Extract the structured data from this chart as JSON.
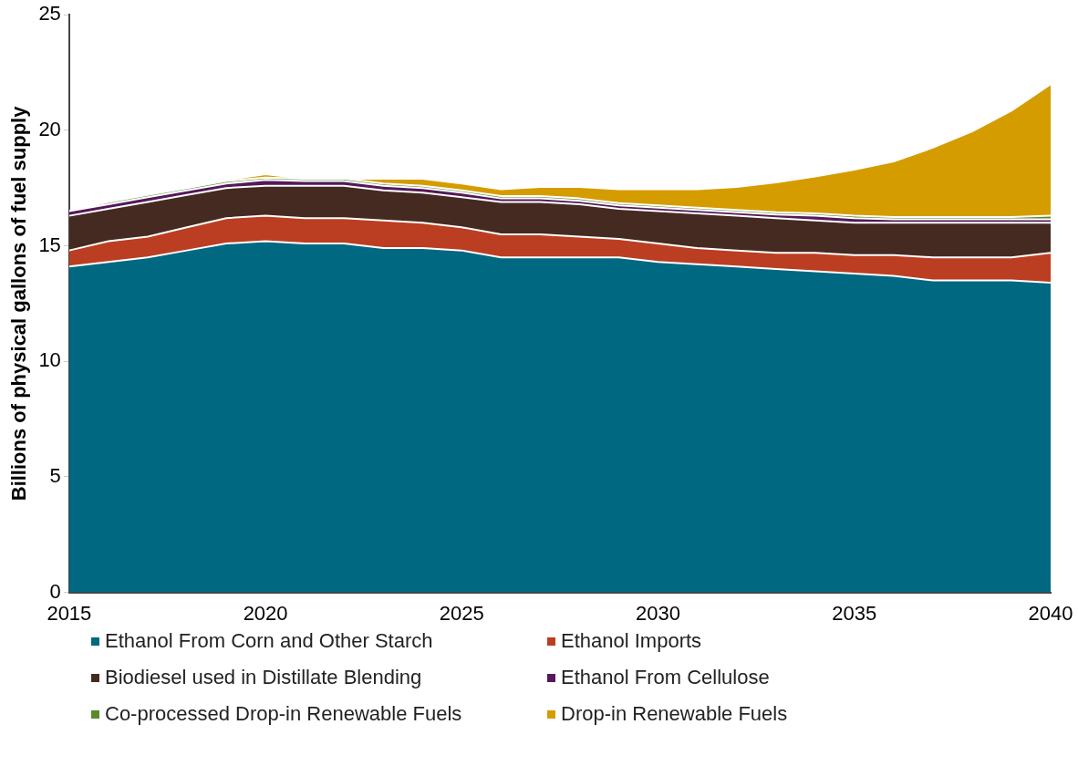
{
  "chart_data": {
    "type": "area",
    "stacked": true,
    "ylabel": "Billions of physical gallons of fuel supply",
    "x": [
      2015,
      2016,
      2017,
      2018,
      2019,
      2020,
      2021,
      2022,
      2023,
      2024,
      2025,
      2026,
      2027,
      2028,
      2029,
      2030,
      2031,
      2032,
      2033,
      2034,
      2035,
      2036,
      2037,
      2038,
      2039,
      2040
    ],
    "xlim": [
      2015,
      2040
    ],
    "xticks": [
      2015,
      2020,
      2025,
      2030,
      2035,
      2040
    ],
    "ylim": [
      0,
      25
    ],
    "yticks": [
      0,
      5,
      10,
      15,
      20,
      25
    ],
    "grid": false,
    "legend": "bottom",
    "series": [
      {
        "name": "Ethanol From Corn and Other Starch",
        "color": "#006880",
        "values": [
          14.1,
          14.3,
          14.5,
          14.8,
          15.1,
          15.2,
          15.1,
          15.1,
          14.9,
          14.9,
          14.8,
          14.5,
          14.5,
          14.5,
          14.5,
          14.3,
          14.2,
          14.1,
          14.0,
          13.9,
          13.8,
          13.7,
          13.5,
          13.5,
          13.5,
          13.4
        ]
      },
      {
        "name": "Ethanol Imports",
        "color": "#bb3e22",
        "values": [
          0.7,
          0.9,
          0.9,
          1.0,
          1.1,
          1.1,
          1.1,
          1.1,
          1.2,
          1.1,
          1.0,
          1.0,
          1.0,
          0.9,
          0.8,
          0.8,
          0.7,
          0.7,
          0.7,
          0.8,
          0.8,
          0.9,
          1.0,
          1.0,
          1.0,
          1.3
        ]
      },
      {
        "name": "Biodiesel used in Distillate Blending",
        "color": "#452a21",
        "values": [
          1.5,
          1.4,
          1.5,
          1.4,
          1.3,
          1.3,
          1.4,
          1.4,
          1.3,
          1.3,
          1.3,
          1.4,
          1.4,
          1.4,
          1.3,
          1.4,
          1.5,
          1.5,
          1.5,
          1.4,
          1.4,
          1.4,
          1.5,
          1.5,
          1.5,
          1.3
        ]
      },
      {
        "name": "Ethanol From Cellulose",
        "color": "#55185a",
        "values": [
          0.2,
          0.2,
          0.2,
          0.2,
          0.2,
          0.25,
          0.2,
          0.2,
          0.2,
          0.2,
          0.2,
          0.15,
          0.15,
          0.15,
          0.15,
          0.15,
          0.15,
          0.15,
          0.15,
          0.2,
          0.2,
          0.15,
          0.15,
          0.15,
          0.15,
          0.15
        ]
      },
      {
        "name": "Co-processed Drop-in Renewable Fuels",
        "color": "#5b8a2d",
        "values": [
          0,
          0.1,
          0.1,
          0.1,
          0.1,
          0.1,
          0.1,
          0.1,
          0.1,
          0.1,
          0.1,
          0.1,
          0.1,
          0.1,
          0.1,
          0.1,
          0.1,
          0.1,
          0.1,
          0.1,
          0.1,
          0.1,
          0.1,
          0.1,
          0.1,
          0.15
        ]
      },
      {
        "name": "Drop-in Renewable Fuels",
        "color": "#d59c00",
        "values": [
          0,
          0,
          0,
          0,
          0.05,
          0.15,
          0,
          0,
          0.2,
          0.3,
          0.3,
          0.3,
          0.4,
          0.5,
          0.6,
          0.7,
          0.8,
          1.0,
          1.3,
          1.6,
          2.0,
          2.4,
          3.0,
          3.7,
          4.6,
          5.7
        ]
      }
    ]
  }
}
